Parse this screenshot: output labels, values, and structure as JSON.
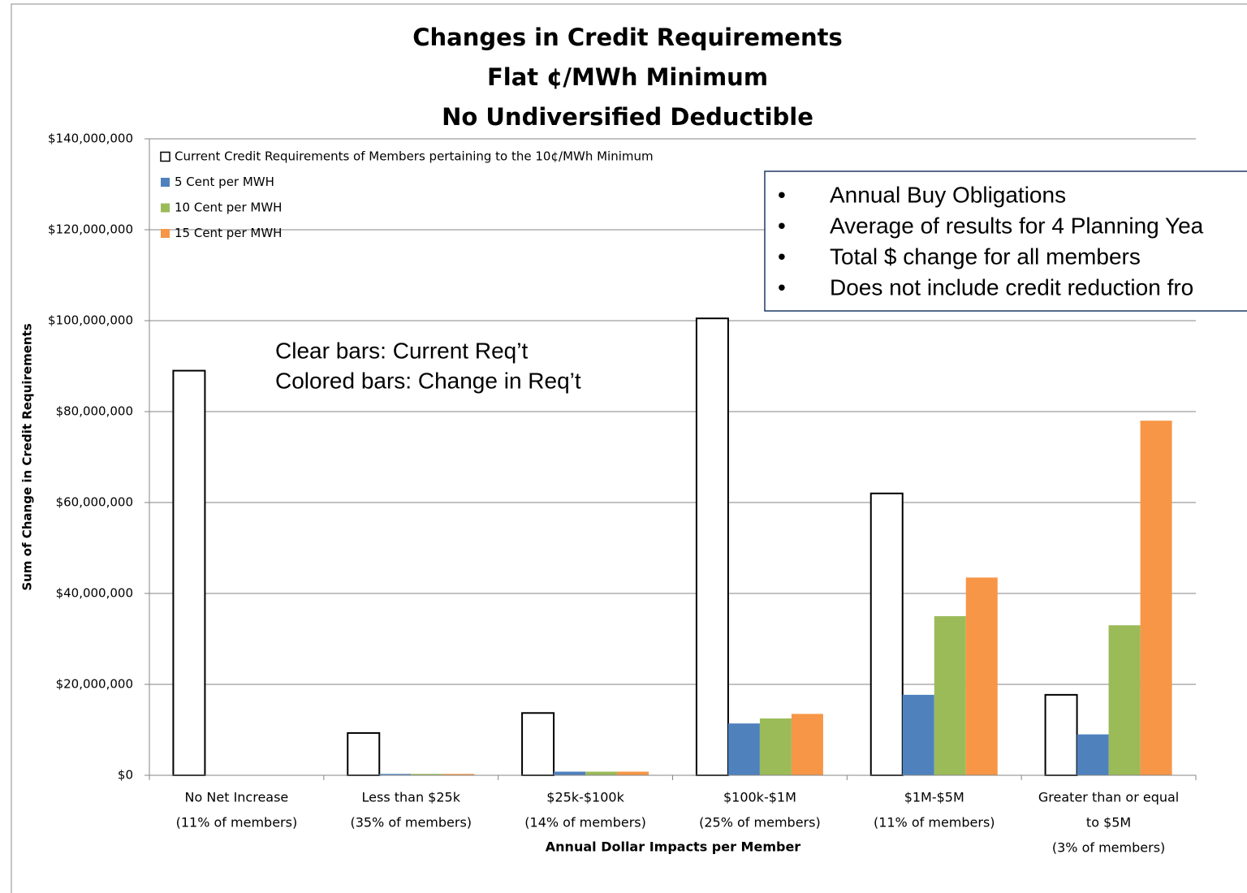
{
  "chart_data": {
    "type": "bar",
    "title": [
      "Changes in Credit Requirements",
      "Flat ¢/MWh Minimum",
      "No Undiversified Deductible"
    ],
    "ylabel": "Sum of Change in Credit Requirements",
    "xlabel": "Annual Dollar Impacts per Member",
    "categories": [
      [
        "No Net Increase",
        "(11% of members)"
      ],
      [
        "Less than $25k",
        "(35% of members)"
      ],
      [
        "$25k-$100k",
        "(14% of members)"
      ],
      [
        "$100k-$1M",
        "(25% of members)"
      ],
      [
        "$1M-$5M",
        "(11% of members)"
      ],
      [
        "Greater than or equal",
        "to $5M",
        "(3% of members)"
      ]
    ],
    "series": [
      {
        "name": "Current Credit Requirements of Members pertaining to the 10¢/MWh Minimum",
        "color": "#ffffff",
        "edgecolor": "#000000",
        "values": [
          89000000,
          9300000,
          13700000,
          100500000,
          62000000,
          17700000
        ]
      },
      {
        "name": "5 Cent per MWH",
        "color": "#4f81bd",
        "values": [
          0,
          300000,
          800000,
          11400000,
          17700000,
          9000000
        ]
      },
      {
        "name": "10 Cent per MWH",
        "color": "#9bbb59",
        "values": [
          0,
          300000,
          800000,
          12500000,
          35000000,
          33000000
        ]
      },
      {
        "name": "15 Cent per MWH",
        "color": "#f79646",
        "values": [
          0,
          300000,
          800000,
          13500000,
          43500000,
          78000000
        ]
      }
    ],
    "ylim": [
      0,
      140000000
    ],
    "yticks": [
      {
        "value": 0,
        "label": "$0"
      },
      {
        "value": 20000000,
        "label": "$20,000,000"
      },
      {
        "value": 40000000,
        "label": "$40,000,000"
      },
      {
        "value": 60000000,
        "label": "$60,000,000"
      },
      {
        "value": 80000000,
        "label": "$80,000,000"
      },
      {
        "value": 100000000,
        "label": "$100,000,000"
      },
      {
        "value": 120000000,
        "label": "$120,000,000"
      },
      {
        "value": 140000000,
        "label": "$140,000,000"
      }
    ],
    "grid": true,
    "legend": "upper left",
    "annotations": [
      "Clear bars: Current Req’t",
      "Colored bars: Change in Req’t"
    ],
    "notes": [
      "Annual Buy Obligations",
      "Average of results for 4 Planning Yea",
      "Total $ change for all members",
      "Does not include credit reduction fro"
    ]
  }
}
